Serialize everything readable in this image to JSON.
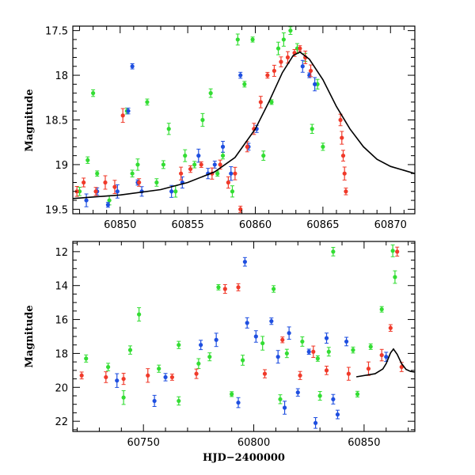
{
  "colors": {
    "green": "#33dd33",
    "blue": "#1f4fe0",
    "red": "#f03a2a",
    "model": "#000000"
  },
  "chart_data": [
    {
      "type": "scatter",
      "xlabel": "",
      "ylabel": "Magnitude",
      "xlim": [
        60846.5,
        60871.8
      ],
      "ylim": [
        19.55,
        17.45
      ],
      "inverted_y": true,
      "x_ticks": [
        60850,
        60855,
        60860,
        60865,
        60870
      ],
      "y_ticks": [
        17.5,
        18,
        18.5,
        19,
        19.5
      ],
      "series": [
        {
          "color": "green",
          "points": [
            [
              60847.0,
              19.3
            ],
            [
              60847.6,
              18.95
            ],
            [
              60848.0,
              18.2
            ],
            [
              60848.3,
              19.1
            ],
            [
              60849.2,
              19.4
            ],
            [
              60850.5,
              18.4
            ],
            [
              60850.9,
              19.1
            ],
            [
              60851.3,
              19.0
            ],
            [
              60852.0,
              18.3
            ],
            [
              60852.7,
              19.2
            ],
            [
              60853.2,
              19.0
            ],
            [
              60853.6,
              18.6
            ],
            [
              60854.1,
              19.3
            ],
            [
              60854.8,
              18.9
            ],
            [
              60855.5,
              19.0
            ],
            [
              60856.1,
              18.5
            ],
            [
              60856.7,
              18.2
            ],
            [
              60857.2,
              19.1
            ],
            [
              60857.6,
              18.9
            ],
            [
              60858.3,
              19.3
            ],
            [
              60858.7,
              17.6
            ],
            [
              60859.2,
              18.1
            ],
            [
              60859.8,
              17.6
            ],
            [
              60860.6,
              18.9
            ],
            [
              60861.2,
              18.3
            ],
            [
              60861.7,
              17.7
            ],
            [
              60862.1,
              17.6
            ],
            [
              60862.6,
              17.5
            ],
            [
              60863.1,
              17.7
            ],
            [
              60863.7,
              17.8
            ],
            [
              60864.2,
              18.6
            ],
            [
              60864.6,
              18.1
            ],
            [
              60865.0,
              18.8
            ]
          ]
        },
        {
          "color": "blue",
          "points": [
            [
              60847.5,
              19.4
            ],
            [
              60848.3,
              19.3
            ],
            [
              60849.1,
              19.45
            ],
            [
              60849.8,
              19.3
            ],
            [
              60850.6,
              18.4
            ],
            [
              60850.9,
              17.9
            ],
            [
              60851.3,
              19.2
            ],
            [
              60851.6,
              19.3
            ],
            [
              60853.8,
              19.3
            ],
            [
              60854.6,
              19.2
            ],
            [
              60855.8,
              18.9
            ],
            [
              60856.5,
              19.1
            ],
            [
              60857.0,
              19.0
            ],
            [
              60857.6,
              18.8
            ],
            [
              60858.2,
              19.1
            ],
            [
              60858.9,
              18.0
            ],
            [
              60859.5,
              18.8
            ],
            [
              60860.1,
              18.6
            ],
            [
              60863.5,
              17.9
            ],
            [
              60864.0,
              18.0
            ],
            [
              60864.4,
              18.1
            ]
          ]
        },
        {
          "color": "red",
          "points": [
            [
              60846.8,
              19.3
            ],
            [
              60847.3,
              19.2
            ],
            [
              60848.2,
              19.3
            ],
            [
              60848.9,
              19.2
            ],
            [
              60849.6,
              19.25
            ],
            [
              60850.2,
              18.45
            ],
            [
              60851.4,
              19.2
            ],
            [
              60854.5,
              19.1
            ],
            [
              60855.2,
              19.05
            ],
            [
              60856.0,
              19.0
            ],
            [
              60856.8,
              19.1
            ],
            [
              60857.4,
              19.0
            ],
            [
              60858.0,
              19.2
            ],
            [
              60858.5,
              19.1
            ],
            [
              60858.9,
              19.5
            ],
            [
              60859.4,
              18.8
            ],
            [
              60859.9,
              18.6
            ],
            [
              60860.4,
              18.3
            ],
            [
              60860.9,
              18.0
            ],
            [
              60861.4,
              17.95
            ],
            [
              60861.9,
              17.85
            ],
            [
              60862.4,
              17.8
            ],
            [
              60862.9,
              17.75
            ],
            [
              60863.3,
              17.7
            ],
            [
              60863.7,
              17.8
            ],
            [
              60864.1,
              17.95
            ],
            [
              60866.3,
              18.5
            ],
            [
              60866.4,
              18.7
            ],
            [
              60866.5,
              18.9
            ],
            [
              60866.6,
              19.1
            ],
            [
              60866.7,
              19.3
            ]
          ]
        },
        {
          "color": "model",
          "kind": "line",
          "points": [
            [
              60846.5,
              19.38
            ],
            [
              60850,
              19.34
            ],
            [
              60853,
              19.28
            ],
            [
              60855,
              19.2
            ],
            [
              60857,
              19.08
            ],
            [
              60858.5,
              18.92
            ],
            [
              60860,
              18.6
            ],
            [
              60861,
              18.3
            ],
            [
              60862,
              17.97
            ],
            [
              60862.8,
              17.78
            ],
            [
              60863.3,
              17.74
            ],
            [
              60864,
              17.82
            ],
            [
              60865,
              18.05
            ],
            [
              60866,
              18.35
            ],
            [
              60867,
              18.6
            ],
            [
              60868,
              18.8
            ],
            [
              60869,
              18.94
            ],
            [
              60870,
              19.02
            ],
            [
              60871.8,
              19.1
            ]
          ]
        }
      ]
    },
    {
      "type": "scatter",
      "xlabel": "HJD−2400000",
      "ylabel": "Magnitude",
      "xlim": [
        60718,
        60873
      ],
      "ylim": [
        22.6,
        11.4
      ],
      "inverted_y": true,
      "x_ticks": [
        60750,
        60800,
        60850
      ],
      "y_ticks": [
        12,
        14,
        16,
        18,
        20,
        22
      ],
      "series": [
        {
          "color": "green",
          "points": [
            [
              60724,
              18.3
            ],
            [
              60734,
              18.8
            ],
            [
              60744,
              17.8
            ],
            [
              60748,
              15.7
            ],
            [
              60757,
              18.9
            ],
            [
              60766,
              17.5
            ],
            [
              60775,
              18.6
            ],
            [
              60780,
              18.2
            ],
            [
              60784,
              14.1
            ],
            [
              60795,
              18.4
            ],
            [
              60804,
              17.4
            ],
            [
              60809,
              14.2
            ],
            [
              60815,
              18.0
            ],
            [
              60822,
              17.3
            ],
            [
              60829,
              18.3
            ],
            [
              60834,
              17.9
            ],
            [
              60836,
              12.0
            ],
            [
              60845,
              17.8
            ],
            [
              60853,
              17.6
            ],
            [
              60858,
              15.4
            ],
            [
              60863,
              11.95
            ],
            [
              60864,
              13.5
            ],
            [
              60741,
              20.6
            ],
            [
              60766,
              20.8
            ],
            [
              60790,
              20.4
            ],
            [
              60812,
              20.7
            ],
            [
              60830,
              20.5
            ],
            [
              60847,
              20.4
            ]
          ]
        },
        {
          "color": "blue",
          "points": [
            [
              60738,
              19.6
            ],
            [
              60760,
              19.4
            ],
            [
              60776,
              17.5
            ],
            [
              60783,
              17.2
            ],
            [
              60796,
              12.6
            ],
            [
              60797,
              16.2
            ],
            [
              60801,
              17.0
            ],
            [
              60808,
              16.1
            ],
            [
              60811,
              18.2
            ],
            [
              60816,
              16.8
            ],
            [
              60825,
              17.9
            ],
            [
              60828,
              22.1
            ],
            [
              60833,
              17.1
            ],
            [
              60838,
              21.6
            ],
            [
              60842,
              17.3
            ],
            [
              60860,
              18.2
            ],
            [
              60755,
              20.8
            ],
            [
              60793,
              20.9
            ],
            [
              60814,
              21.2
            ],
            [
              60820,
              20.3
            ],
            [
              60836,
              20.7
            ]
          ]
        },
        {
          "color": "red",
          "points": [
            [
              60722,
              19.3
            ],
            [
              60733,
              19.4
            ],
            [
              60741,
              19.5
            ],
            [
              60752,
              19.3
            ],
            [
              60763,
              19.4
            ],
            [
              60774,
              19.2
            ],
            [
              60787,
              14.2
            ],
            [
              60793,
              14.1
            ],
            [
              60805,
              19.2
            ],
            [
              60813,
              17.2
            ],
            [
              60821,
              19.3
            ],
            [
              60827,
              17.9
            ],
            [
              60833,
              19.0
            ],
            [
              60843,
              19.2
            ],
            [
              60852,
              18.9
            ],
            [
              60858,
              18.1
            ],
            [
              60862,
              16.5
            ],
            [
              60865,
              12.0
            ],
            [
              60867,
              18.8
            ]
          ]
        },
        {
          "color": "model",
          "kind": "line",
          "points": [
            [
              60846.5,
              19.38
            ],
            [
              60855,
              19.2
            ],
            [
              60858.5,
              18.92
            ],
            [
              60860,
              18.6
            ],
            [
              60862,
              17.97
            ],
            [
              60863.3,
              17.74
            ],
            [
              60865,
              18.05
            ],
            [
              60867,
              18.6
            ],
            [
              60869,
              18.94
            ],
            [
              60871,
              19.06
            ],
            [
              60873,
              19.1
            ]
          ]
        }
      ]
    }
  ]
}
